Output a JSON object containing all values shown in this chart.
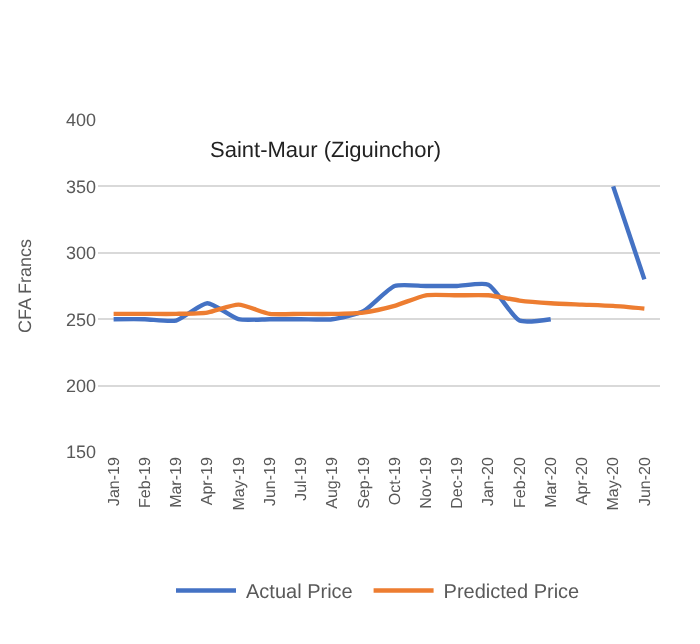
{
  "chart_data": {
    "type": "line",
    "title": "Saint-Maur (Ziguinchor)",
    "ylabel": "CFA Francs",
    "categories": [
      "Jan-19",
      "Feb-19",
      "Mar-19",
      "Apr-19",
      "May-19",
      "Jun-19",
      "Jul-19",
      "Aug-19",
      "Sep-19",
      "Oct-19",
      "Nov-19",
      "Dec-19",
      "Jan-20",
      "Feb-20",
      "Mar-20",
      "Apr-20",
      "May-20",
      "Jun-20"
    ],
    "series": [
      {
        "name": "Actual Price",
        "color": "#4472c4",
        "values": [
          250,
          250,
          249,
          262,
          250,
          250,
          250,
          250,
          256,
          275,
          275,
          275,
          276,
          249,
          250,
          null,
          350,
          280
        ]
      },
      {
        "name": "Predicted Price",
        "color": "#ed7d31",
        "values": [
          254,
          254,
          254,
          255,
          261,
          254,
          254,
          254,
          255,
          260,
          268,
          268,
          268,
          264,
          262,
          261,
          260,
          258
        ]
      }
    ],
    "ylim": [
      150,
      400
    ],
    "yticks": [
      150,
      200,
      250,
      300,
      350,
      400
    ],
    "grid": "y",
    "legend": "bottom",
    "marker": "none",
    "line_style": "solid"
  }
}
